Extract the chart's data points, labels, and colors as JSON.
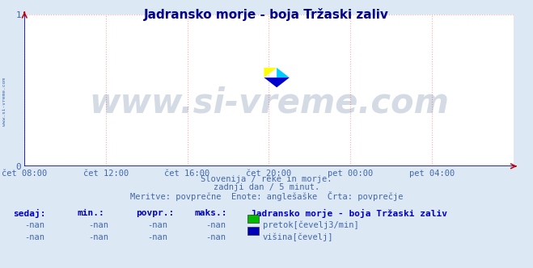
{
  "title": "Jadransko morje - boja Tržaski zaliv",
  "bg_color": "#dce9f5",
  "plot_bg_color": "#ffffff",
  "axis_color": "#0000bb",
  "grid_color": "#ffaaaa",
  "title_color": "#00008b",
  "text_color": "#4466aa",
  "xlim": [
    0,
    1
  ],
  "ylim": [
    0,
    1
  ],
  "yticks": [
    0,
    1
  ],
  "xtick_labels": [
    "čet 08:00",
    "čet 12:00",
    "čet 16:00",
    "čet 20:00",
    "pet 00:00",
    "pet 04:00"
  ],
  "xtick_positions": [
    0.0,
    0.167,
    0.333,
    0.5,
    0.667,
    0.833
  ],
  "watermark": "www.si-vreme.com",
  "watermark_color": "#1a3a6a",
  "watermark_alpha": 0.18,
  "side_text": "www.si-vreme.com",
  "subtitle1": "Slovenija / reke in morje.",
  "subtitle2": "zadnji dan / 5 minut.",
  "subtitle3": "Meritve: povprečne  Enote: anglešaške  Črta: povprečje",
  "table_header": [
    "sedaj:",
    "min.:",
    "povpr.:",
    "maks.:"
  ],
  "station_name": "Jadransko morje - boja Tržaski zaliv",
  "legend": [
    {
      "label": "pretok[čevelj3/min]",
      "color": "#00bb00"
    },
    {
      "label": "višina[čevelj]",
      "color": "#0000bb"
    }
  ],
  "nan_values": "-nan"
}
